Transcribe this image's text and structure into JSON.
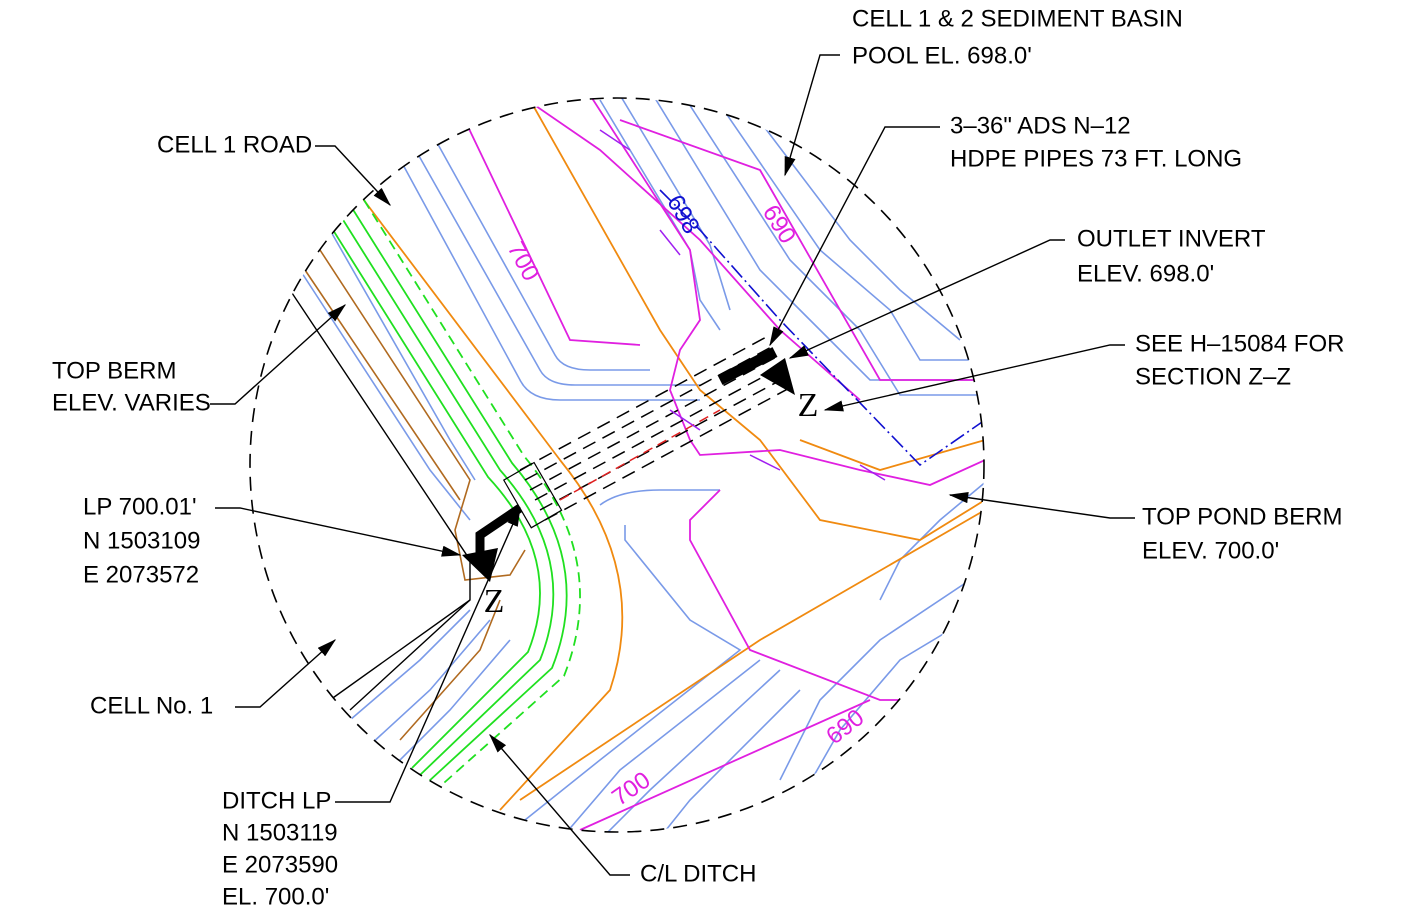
{
  "labels": [
    {
      "lines": [
        "CELL 1 & 2 SEDIMENT BASIN",
        "POOL EL. 698.0'"
      ]
    },
    {
      "lines": [
        "CELL 1 ROAD"
      ]
    },
    {
      "lines": [
        "3–36\" ADS N–12",
        "HDPE PIPES 73 FT. LONG"
      ]
    },
    {
      "lines": [
        "OUTLET INVERT",
        "ELEV. 698.0'"
      ]
    },
    {
      "lines": [
        "SEE H–15084 FOR",
        "SECTION Z–Z"
      ]
    },
    {
      "lines": [
        "TOP BERM",
        "ELEV. VARIES"
      ]
    },
    {
      "lines": [
        "LP 700.01'",
        "N 1503109",
        "E 2073572"
      ]
    },
    {
      "lines": [
        "TOP POND BERM",
        "ELEV. 700.0'"
      ]
    },
    {
      "lines": [
        "CELL No. 1"
      ]
    },
    {
      "lines": [
        "DITCH LP",
        "N 1503119",
        "E 2073590",
        "EL. 700.0'"
      ]
    },
    {
      "lines": [
        "C/L DITCH"
      ]
    }
  ],
  "contour_labels": [
    "700",
    "698",
    "690",
    "690",
    "700"
  ],
  "section_marks": [
    "Z",
    "Z"
  ]
}
